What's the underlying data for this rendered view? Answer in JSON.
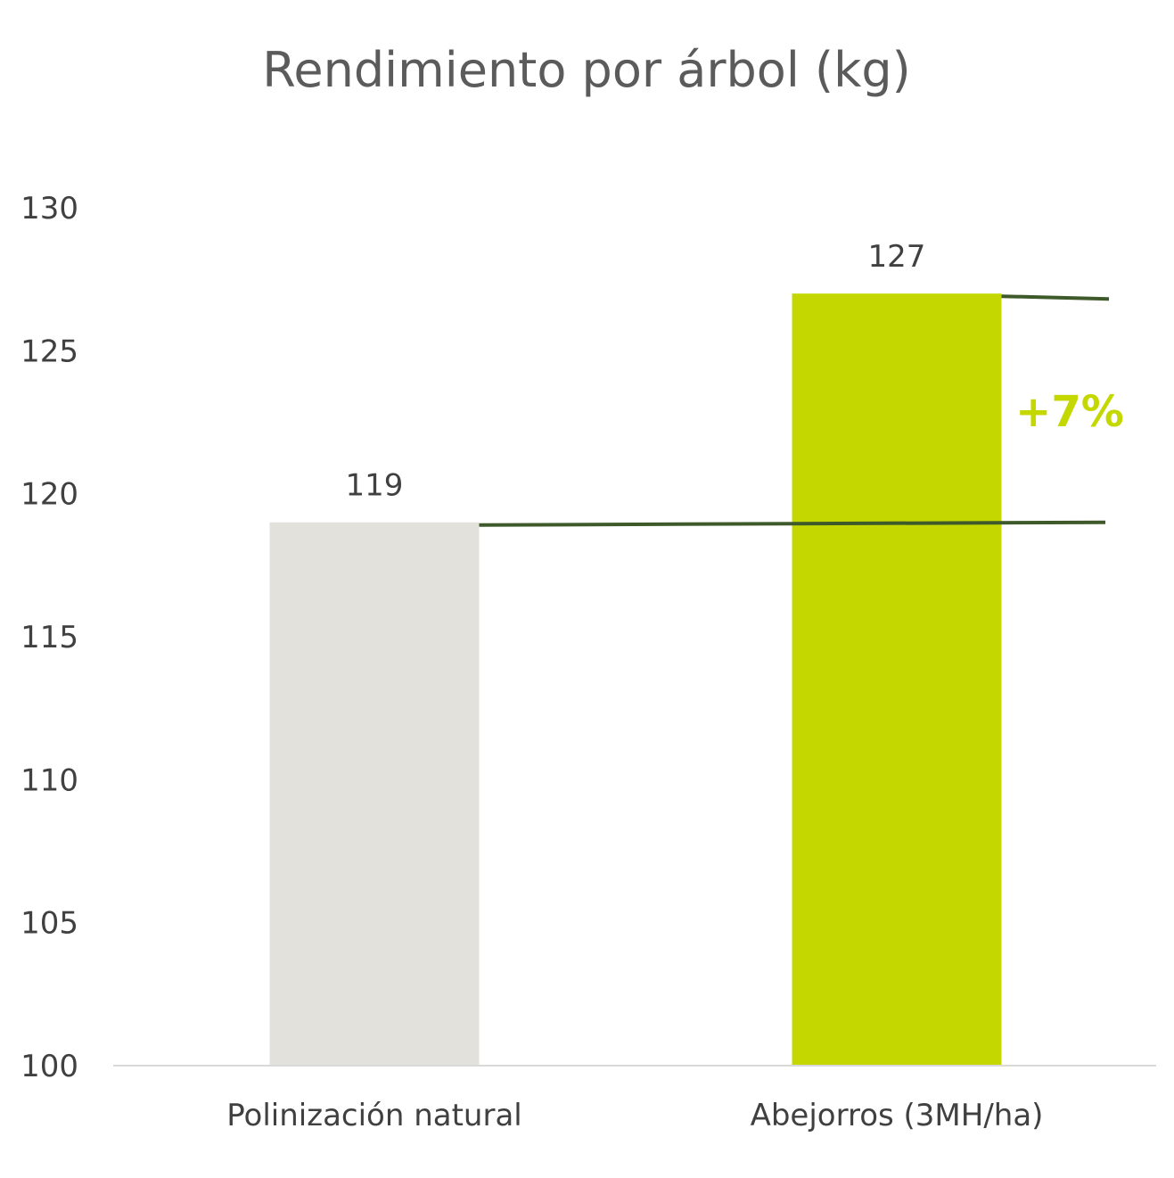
{
  "chart_data": {
    "type": "bar",
    "title": "Rendimiento por árbol (kg)",
    "categories": [
      "Polinización natural",
      "Abejorros (3MH/ha)"
    ],
    "values": [
      119,
      127
    ],
    "data_labels": [
      "119",
      "127"
    ],
    "ylim": [
      100,
      130
    ],
    "yticks": [
      "100",
      "105",
      "110",
      "115",
      "120",
      "125",
      "130"
    ],
    "xlabel": "",
    "ylabel": "",
    "grid": false,
    "legend": "none",
    "bar_colors": [
      "#e2e1dc",
      "#c4d800"
    ],
    "reference_line_color": "#3f5a2a",
    "axis_color": "#d9d9d9",
    "annotation": {
      "text": "+7%",
      "color": "#c4d800"
    }
  }
}
